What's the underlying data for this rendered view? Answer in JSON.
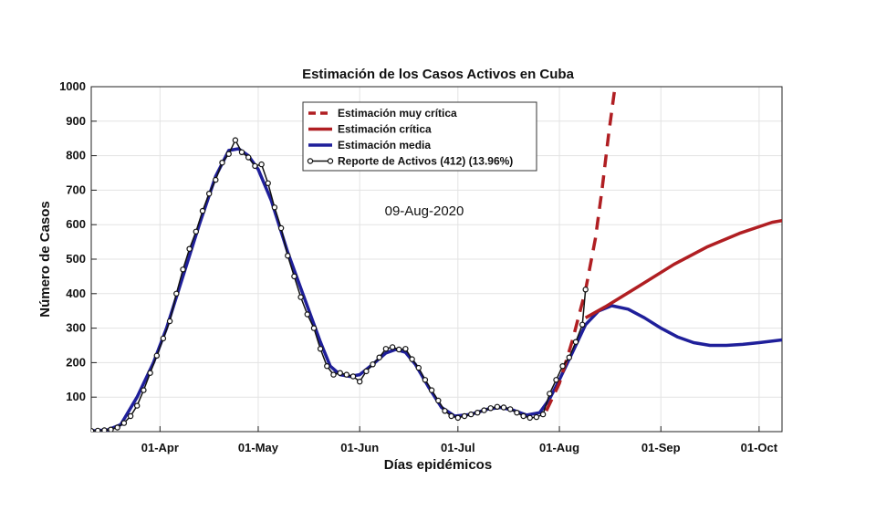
{
  "chart_data": {
    "type": "line",
    "title": "Estimación de los Casos Activos en Cuba",
    "xlabel": "Días epidémicos",
    "ylabel": "Número de Casos",
    "annotation": "09-Aug-2020",
    "xlim": [
      "2020-03-11",
      "2020-10-08"
    ],
    "ylim": [
      0,
      1000
    ],
    "grid": true,
    "legend_position": "top-center",
    "x_ticks": [
      {
        "date": "2020-04-01",
        "label": "01-Apr"
      },
      {
        "date": "2020-05-01",
        "label": "01-May"
      },
      {
        "date": "2020-06-01",
        "label": "01-Jun"
      },
      {
        "date": "2020-07-01",
        "label": "01-Jul"
      },
      {
        "date": "2020-08-01",
        "label": "01-Aug"
      },
      {
        "date": "2020-09-01",
        "label": "01-Sep"
      },
      {
        "date": "2020-10-01",
        "label": "01-Oct"
      }
    ],
    "y_ticks": [
      100,
      200,
      300,
      400,
      500,
      600,
      700,
      800,
      900,
      1000
    ],
    "series": [
      {
        "name": "Estimación muy crítica",
        "color": "#b01e22",
        "style": "dashed",
        "points": [
          [
            "2020-07-28",
            60
          ],
          [
            "2020-08-01",
            140
          ],
          [
            "2020-08-05",
            265
          ],
          [
            "2020-08-09",
            410
          ],
          [
            "2020-08-12",
            560
          ],
          [
            "2020-08-14",
            700
          ],
          [
            "2020-08-16",
            860
          ],
          [
            "2020-08-18",
            1000
          ]
        ]
      },
      {
        "name": "Estimación crítica",
        "color": "#b01e22",
        "style": "solid",
        "points": [
          [
            "2020-08-09",
            330
          ],
          [
            "2020-08-15",
            362
          ],
          [
            "2020-08-25",
            420
          ],
          [
            "2020-09-05",
            485
          ],
          [
            "2020-09-15",
            535
          ],
          [
            "2020-09-25",
            575
          ],
          [
            "2020-10-05",
            607
          ],
          [
            "2020-10-08",
            612
          ]
        ]
      },
      {
        "name": "Estimación media",
        "color": "#1f1f9a",
        "style": "solid",
        "points": [
          [
            "2020-03-11",
            2
          ],
          [
            "2020-03-16",
            5
          ],
          [
            "2020-03-20",
            20
          ],
          [
            "2020-03-25",
            100
          ],
          [
            "2020-03-30",
            200
          ],
          [
            "2020-04-03",
            300
          ],
          [
            "2020-04-08",
            450
          ],
          [
            "2020-04-13",
            600
          ],
          [
            "2020-04-18",
            740
          ],
          [
            "2020-04-22",
            815
          ],
          [
            "2020-04-25",
            820
          ],
          [
            "2020-04-28",
            800
          ],
          [
            "2020-05-01",
            760
          ],
          [
            "2020-05-05",
            670
          ],
          [
            "2020-05-10",
            520
          ],
          [
            "2020-05-15",
            390
          ],
          [
            "2020-05-20",
            260
          ],
          [
            "2020-05-23",
            190
          ],
          [
            "2020-05-26",
            165
          ],
          [
            "2020-05-29",
            160
          ],
          [
            "2020-06-01",
            165
          ],
          [
            "2020-06-05",
            195
          ],
          [
            "2020-06-09",
            228
          ],
          [
            "2020-06-12",
            238
          ],
          [
            "2020-06-15",
            230
          ],
          [
            "2020-06-18",
            195
          ],
          [
            "2020-06-22",
            130
          ],
          [
            "2020-06-26",
            70
          ],
          [
            "2020-06-30",
            45
          ],
          [
            "2020-07-05",
            50
          ],
          [
            "2020-07-10",
            65
          ],
          [
            "2020-07-14",
            70
          ],
          [
            "2020-07-18",
            62
          ],
          [
            "2020-07-22",
            48
          ],
          [
            "2020-07-26",
            55
          ],
          [
            "2020-07-29",
            95
          ],
          [
            "2020-08-01",
            150
          ],
          [
            "2020-08-05",
            230
          ],
          [
            "2020-08-09",
            310
          ],
          [
            "2020-08-13",
            350
          ],
          [
            "2020-08-17",
            365
          ],
          [
            "2020-08-22",
            355
          ],
          [
            "2020-08-27",
            330
          ],
          [
            "2020-09-01",
            300
          ],
          [
            "2020-09-06",
            275
          ],
          [
            "2020-09-11",
            258
          ],
          [
            "2020-09-16",
            250
          ],
          [
            "2020-09-21",
            250
          ],
          [
            "2020-09-26",
            253
          ],
          [
            "2020-10-01",
            258
          ],
          [
            "2020-10-08",
            266
          ]
        ]
      },
      {
        "name": "Reporte de Activos (412) (13.96%)",
        "color": "#111111",
        "style": "solid-markers",
        "points": [
          [
            "2020-03-11",
            2
          ],
          [
            "2020-03-13",
            3
          ],
          [
            "2020-03-15",
            4
          ],
          [
            "2020-03-17",
            6
          ],
          [
            "2020-03-19",
            12
          ],
          [
            "2020-03-21",
            25
          ],
          [
            "2020-03-23",
            45
          ],
          [
            "2020-03-25",
            75
          ],
          [
            "2020-03-27",
            120
          ],
          [
            "2020-03-29",
            170
          ],
          [
            "2020-03-31",
            220
          ],
          [
            "2020-04-02",
            270
          ],
          [
            "2020-04-04",
            320
          ],
          [
            "2020-04-06",
            400
          ],
          [
            "2020-04-08",
            470
          ],
          [
            "2020-04-10",
            530
          ],
          [
            "2020-04-12",
            580
          ],
          [
            "2020-04-14",
            640
          ],
          [
            "2020-04-16",
            690
          ],
          [
            "2020-04-18",
            730
          ],
          [
            "2020-04-20",
            780
          ],
          [
            "2020-04-22",
            805
          ],
          [
            "2020-04-24",
            845
          ],
          [
            "2020-04-26",
            810
          ],
          [
            "2020-04-28",
            795
          ],
          [
            "2020-04-30",
            770
          ],
          [
            "2020-05-02",
            775
          ],
          [
            "2020-05-04",
            720
          ],
          [
            "2020-05-06",
            650
          ],
          [
            "2020-05-08",
            590
          ],
          [
            "2020-05-10",
            510
          ],
          [
            "2020-05-12",
            450
          ],
          [
            "2020-05-14",
            390
          ],
          [
            "2020-05-16",
            340
          ],
          [
            "2020-05-18",
            300
          ],
          [
            "2020-05-20",
            240
          ],
          [
            "2020-05-22",
            190
          ],
          [
            "2020-05-24",
            165
          ],
          [
            "2020-05-26",
            170
          ],
          [
            "2020-05-28",
            165
          ],
          [
            "2020-05-30",
            160
          ],
          [
            "2020-06-01",
            145
          ],
          [
            "2020-06-03",
            175
          ],
          [
            "2020-06-05",
            195
          ],
          [
            "2020-06-07",
            215
          ],
          [
            "2020-06-09",
            240
          ],
          [
            "2020-06-11",
            245
          ],
          [
            "2020-06-13",
            238
          ],
          [
            "2020-06-15",
            240
          ],
          [
            "2020-06-17",
            210
          ],
          [
            "2020-06-19",
            185
          ],
          [
            "2020-06-21",
            150
          ],
          [
            "2020-06-23",
            120
          ],
          [
            "2020-06-25",
            90
          ],
          [
            "2020-06-27",
            60
          ],
          [
            "2020-06-29",
            45
          ],
          [
            "2020-07-01",
            40
          ],
          [
            "2020-07-03",
            45
          ],
          [
            "2020-07-05",
            50
          ],
          [
            "2020-07-07",
            55
          ],
          [
            "2020-07-09",
            62
          ],
          [
            "2020-07-11",
            68
          ],
          [
            "2020-07-13",
            72
          ],
          [
            "2020-07-15",
            70
          ],
          [
            "2020-07-17",
            65
          ],
          [
            "2020-07-19",
            55
          ],
          [
            "2020-07-21",
            45
          ],
          [
            "2020-07-23",
            40
          ],
          [
            "2020-07-25",
            42
          ],
          [
            "2020-07-27",
            50
          ],
          [
            "2020-07-29",
            110
          ],
          [
            "2020-07-31",
            150
          ],
          [
            "2020-08-02",
            190
          ],
          [
            "2020-08-04",
            215
          ],
          [
            "2020-08-06",
            260
          ],
          [
            "2020-08-08",
            310
          ],
          [
            "2020-08-09",
            412
          ]
        ]
      }
    ]
  }
}
